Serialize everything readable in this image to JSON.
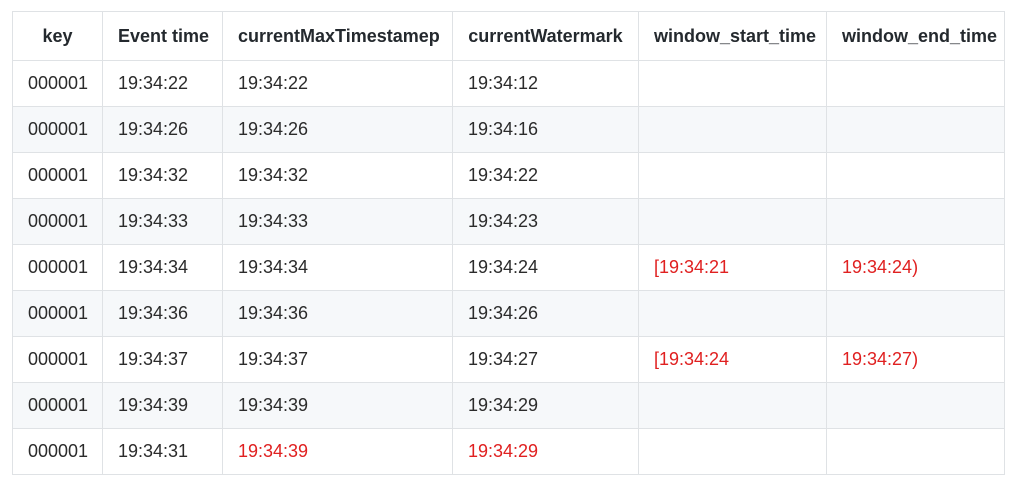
{
  "table": {
    "headers": [
      "key",
      "Event time",
      "currentMaxTimestamep",
      "currentWatermark",
      "window_start_time",
      "window_end_time"
    ],
    "rows": [
      [
        "000001",
        "19:34:22",
        "19:34:22",
        "19:34:12",
        "",
        ""
      ],
      [
        "000001",
        "19:34:26",
        "19:34:26",
        "19:34:16",
        "",
        ""
      ],
      [
        "000001",
        "19:34:32",
        "19:34:32",
        "19:34:22",
        "",
        ""
      ],
      [
        "000001",
        "19:34:33",
        "19:34:33",
        "19:34:23",
        "",
        ""
      ],
      [
        "000001",
        "19:34:34",
        "19:34:34",
        "19:34:24",
        "[19:34:21",
        "19:34:24)"
      ],
      [
        "000001",
        "19:34:36",
        "19:34:36",
        "19:34:26",
        "",
        ""
      ],
      [
        "000001",
        "19:34:37",
        "19:34:37",
        "19:34:27",
        "[19:34:24",
        "19:34:27)"
      ],
      [
        "000001",
        "19:34:39",
        "19:34:39",
        "19:34:29",
        "",
        ""
      ],
      [
        "000001",
        "19:34:31",
        "19:34:39",
        "19:34:29",
        "",
        ""
      ]
    ],
    "highlight_color": "#e02020"
  }
}
